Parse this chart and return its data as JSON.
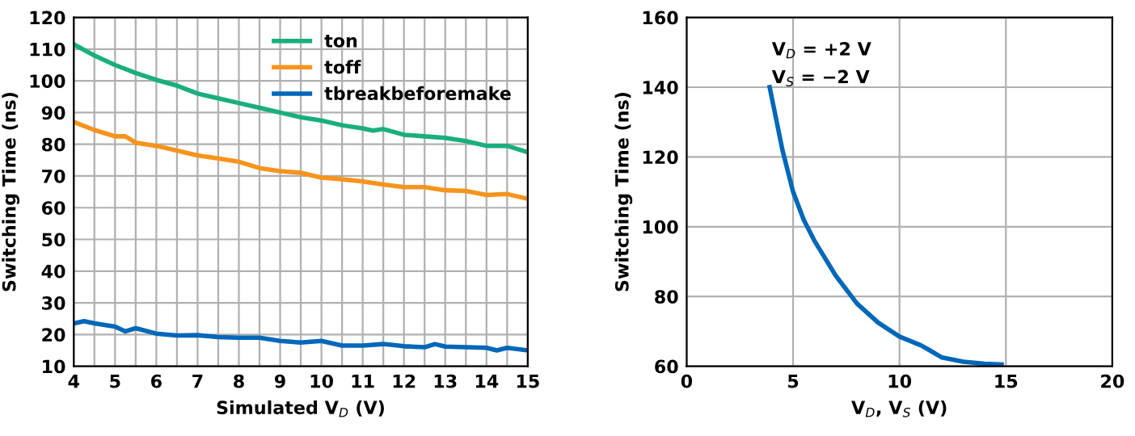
{
  "chart_data": [
    {
      "type": "line",
      "xlabel": "Simulated V$_{D}$ (V)",
      "ylabel": "Switching Time (ns)",
      "xlim": [
        4,
        15
      ],
      "ylim": [
        10,
        120
      ],
      "xticks": [
        4,
        {
          "value": 4.5,
          "label": null
        },
        5,
        {
          "value": 5.5,
          "label": null
        },
        6,
        {
          "value": 6.5,
          "label": null
        },
        7,
        {
          "value": 7.5,
          "label": null
        },
        8,
        {
          "value": 8.5,
          "label": null
        },
        9,
        {
          "value": 9.5,
          "label": null
        },
        10,
        {
          "value": 10.5,
          "label": null
        },
        11,
        {
          "value": 11.5,
          "label": null
        },
        12,
        {
          "value": 12.5,
          "label": null
        },
        13,
        {
          "value": 13.5,
          "label": null
        },
        14,
        {
          "value": 14.5,
          "label": null
        },
        15
      ],
      "yticks": [
        10,
        20,
        30,
        40,
        50,
        60,
        70,
        80,
        90,
        100,
        110,
        120
      ],
      "grid": true,
      "legend": "top right",
      "series": [
        {
          "name": "ton",
          "color": "#1aae7e",
          "x": [
            4,
            4.5,
            5,
            5.5,
            6,
            6.5,
            7,
            7.5,
            8,
            8.5,
            9,
            9.5,
            10,
            10.5,
            11,
            11.25,
            11.5,
            12,
            12.5,
            13,
            13.5,
            14,
            14.5,
            15
          ],
          "values": [
            111.5,
            108,
            105,
            102.5,
            100.3,
            98.5,
            96,
            94.5,
            93,
            91.5,
            90,
            88.5,
            87.5,
            86,
            85,
            84.3,
            84.8,
            83,
            82.5,
            82,
            81,
            79.5,
            79.5,
            77.5
          ]
        },
        {
          "name": "toff",
          "color": "#f7941d",
          "x": [
            4,
            4.5,
            5,
            5.25,
            5.5,
            6,
            6.5,
            7,
            7.5,
            8,
            8.5,
            9,
            9.5,
            10,
            10.5,
            11,
            11.5,
            12,
            12.5,
            13,
            13.5,
            14,
            14.5,
            15
          ],
          "values": [
            87,
            84.5,
            82.5,
            82.5,
            80.5,
            79.5,
            78,
            76.5,
            75.5,
            74.5,
            72.5,
            71.5,
            71,
            69.5,
            69,
            68.3,
            67.3,
            66.5,
            66.5,
            65.5,
            65.3,
            64,
            64.3,
            62.8
          ]
        },
        {
          "name": "tbreakbeforemake",
          "color": "#0067b9",
          "x": [
            4,
            4.25,
            4.5,
            5,
            5.25,
            5.5,
            6,
            6.5,
            7,
            7.5,
            8,
            8.5,
            9,
            9.5,
            10,
            10.5,
            11,
            11.5,
            12,
            12.5,
            12.75,
            13,
            13.5,
            14,
            14.25,
            14.5,
            15
          ],
          "values": [
            23.5,
            24.2,
            23.5,
            22.5,
            21,
            22,
            20.3,
            19.7,
            19.8,
            19.2,
            19,
            19,
            18,
            17.5,
            18,
            16.5,
            16.5,
            17,
            16.3,
            16,
            17,
            16.2,
            16,
            15.8,
            15,
            15.8,
            15
          ]
        }
      ]
    },
    {
      "type": "line",
      "xlabel": "V$_{D}$, V$_{S}$ (V)",
      "ylabel": "Switching Time (ns)",
      "xlim": [
        0,
        20
      ],
      "ylim": [
        60,
        160
      ],
      "xticks": [
        0,
        5,
        10,
        15,
        20
      ],
      "yticks": [
        60,
        80,
        100,
        120,
        140,
        160
      ],
      "grid": true,
      "annotations": [
        "V$_{D}$ = +2 V",
        "V$_{S}$ = −2 V"
      ],
      "series": [
        {
          "color": "#0067b9",
          "x": [
            3.9,
            4.5,
            5,
            5.5,
            6,
            7,
            8,
            9,
            10,
            11,
            11.3,
            12,
            13,
            14,
            14.8
          ],
          "values": [
            140,
            122,
            110,
            102,
            96,
            86,
            78,
            72.5,
            68.5,
            66,
            65,
            62.5,
            61.3,
            60.7,
            60.5
          ]
        }
      ]
    }
  ]
}
